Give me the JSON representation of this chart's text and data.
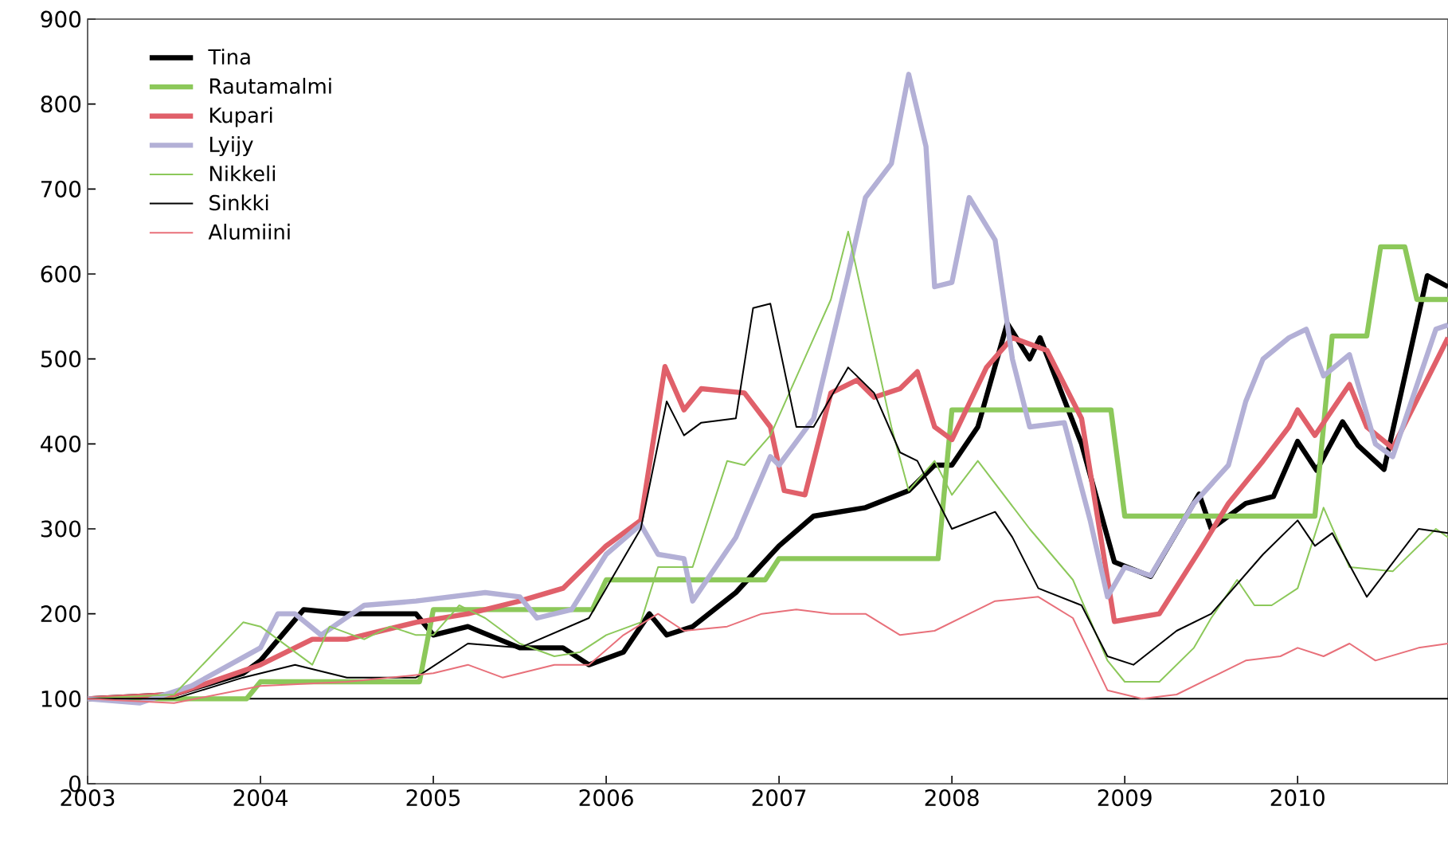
{
  "chart_data": {
    "type": "line",
    "xlim": [
      2003,
      2010.87
    ],
    "ylim": [
      0,
      900
    ],
    "xticks": [
      2003,
      2004,
      2005,
      2006,
      2007,
      2008,
      2009,
      2010
    ],
    "yticks": [
      0,
      100,
      200,
      300,
      400,
      500,
      600,
      700,
      800,
      900
    ],
    "grid": false,
    "legend": "top left",
    "marker": "none",
    "line_style": "solid",
    "ref_lines": [
      {
        "axis": "y",
        "value": 100,
        "color": "#000000"
      }
    ],
    "series": [
      {
        "name": "Tina",
        "color": "#000000",
        "x": [
          2003,
          2003.5,
          2003.9,
          2004.0,
          2004.25,
          2004.5,
          2004.9,
          2005.0,
          2005.2,
          2005.5,
          2005.75,
          2005.9,
          2006.1,
          2006.25,
          2006.35,
          2006.5,
          2006.75,
          2007.0,
          2007.2,
          2007.5,
          2007.75,
          2007.9,
          2008.0,
          2008.15,
          2008.32,
          2008.45,
          2008.51,
          2008.75,
          2008.94,
          2009.15,
          2009.43,
          2009.5,
          2009.7,
          2009.86,
          2010.0,
          2010.11,
          2010.26,
          2010.35,
          2010.5,
          2010.75,
          2010.87
        ],
        "values": [
          100,
          105,
          130,
          145,
          205,
          200,
          200,
          175,
          185,
          160,
          160,
          140,
          155,
          200,
          175,
          185,
          225,
          280,
          315,
          325,
          345,
          375,
          375,
          420,
          542,
          500,
          525,
          400,
          261,
          244,
          341,
          300,
          330,
          338,
          403,
          369,
          426,
          398,
          370,
          598,
          585
        ]
      },
      {
        "name": "Rautamalmi",
        "color": "#8cc85a",
        "x": [
          2003,
          2003.92,
          2004.0,
          2004.92,
          2005.0,
          2005.92,
          2006.0,
          2006.92,
          2007.0,
          2007.92,
          2008.0,
          2008.92,
          2009.0,
          2010.1,
          2010.2,
          2010.4,
          2010.48,
          2010.62,
          2010.69,
          2010.87
        ],
        "values": [
          100,
          100,
          120,
          120,
          205,
          205,
          240,
          240,
          265,
          265,
          440,
          440,
          315,
          315,
          527,
          527,
          632,
          632,
          570,
          570
        ]
      },
      {
        "name": "Kupari",
        "color": "#e0606a",
        "x": [
          2003,
          2003.5,
          2004.0,
          2004.3,
          2004.5,
          2004.9,
          2005.2,
          2005.5,
          2005.75,
          2006.0,
          2006.2,
          2006.34,
          2006.45,
          2006.55,
          2006.8,
          2006.95,
          2007.03,
          2007.15,
          2007.3,
          2007.45,
          2007.55,
          2007.7,
          2007.8,
          2007.9,
          2008.0,
          2008.2,
          2008.35,
          2008.55,
          2008.75,
          2008.94,
          2009.2,
          2009.45,
          2009.6,
          2009.8,
          2009.95,
          2010.0,
          2010.1,
          2010.3,
          2010.4,
          2010.55,
          2010.87
        ],
        "values": [
          100,
          105,
          140,
          170,
          170,
          190,
          200,
          215,
          230,
          280,
          310,
          491,
          440,
          465,
          460,
          420,
          345,
          340,
          460,
          475,
          455,
          465,
          485,
          420,
          405,
          490,
          525,
          510,
          430,
          191,
          200,
          280,
          330,
          380,
          420,
          440,
          410,
          470,
          420,
          395,
          525
        ]
      },
      {
        "name": "Lyijy",
        "color": "#b3b0d6",
        "x": [
          2003,
          2003.3,
          2003.6,
          2004.0,
          2004.1,
          2004.2,
          2004.35,
          2004.6,
          2004.9,
          2005.3,
          2005.5,
          2005.6,
          2005.8,
          2006.0,
          2006.2,
          2006.3,
          2006.45,
          2006.5,
          2006.75,
          2006.95,
          2007.0,
          2007.2,
          2007.4,
          2007.5,
          2007.65,
          2007.75,
          2007.85,
          2007.9,
          2008.0,
          2008.1,
          2008.25,
          2008.35,
          2008.45,
          2008.65,
          2008.8,
          2008.9,
          2009.0,
          2009.15,
          2009.4,
          2009.6,
          2009.7,
          2009.8,
          2009.95,
          2010.05,
          2010.15,
          2010.3,
          2010.45,
          2010.55,
          2010.8,
          2010.87
        ],
        "values": [
          100,
          95,
          115,
          160,
          200,
          200,
          175,
          210,
          215,
          225,
          220,
          195,
          205,
          270,
          305,
          270,
          265,
          215,
          290,
          385,
          375,
          430,
          600,
          690,
          730,
          835,
          750,
          585,
          590,
          690,
          640,
          500,
          420,
          425,
          310,
          220,
          255,
          245,
          330,
          375,
          450,
          500,
          525,
          535,
          480,
          505,
          400,
          385,
          535,
          540
        ]
      },
      {
        "name": "Nikkeli",
        "color": "#8cc85a",
        "x": [
          2003,
          2003.5,
          2003.9,
          2004.0,
          2004.3,
          2004.4,
          2004.6,
          2004.75,
          2004.9,
          2005.0,
          2005.15,
          2005.3,
          2005.5,
          2005.7,
          2005.85,
          2006.0,
          2006.2,
          2006.3,
          2006.5,
          2006.7,
          2006.8,
          2006.95,
          2007.3,
          2007.4,
          2007.65,
          2007.75,
          2007.9,
          2008.0,
          2008.15,
          2008.45,
          2008.7,
          2008.9,
          2009.0,
          2009.2,
          2009.4,
          2009.5,
          2009.65,
          2009.75,
          2009.85,
          2010.0,
          2010.15,
          2010.3,
          2010.55,
          2010.8,
          2010.87
        ],
        "values": [
          100,
          105,
          190,
          185,
          140,
          185,
          170,
          185,
          175,
          175,
          210,
          195,
          165,
          150,
          155,
          175,
          190,
          255,
          255,
          380,
          375,
          410,
          570,
          650,
          420,
          345,
          380,
          340,
          380,
          300,
          240,
          145,
          120,
          120,
          160,
          195,
          240,
          210,
          210,
          230,
          325,
          255,
          250,
          300,
          290
        ]
      },
      {
        "name": "Sinkki",
        "color": "#000000",
        "x": [
          2003,
          2003.5,
          2003.9,
          2004.2,
          2004.5,
          2004.9,
          2005.2,
          2005.5,
          2005.9,
          2006.1,
          2006.2,
          2006.35,
          2006.45,
          2006.55,
          2006.75,
          2006.85,
          2006.95,
          2007.1,
          2007.2,
          2007.4,
          2007.55,
          2007.7,
          2007.8,
          2008.0,
          2008.25,
          2008.35,
          2008.5,
          2008.75,
          2008.9,
          2009.05,
          2009.3,
          2009.5,
          2009.8,
          2010.0,
          2010.1,
          2010.2,
          2010.4,
          2010.7,
          2010.87
        ],
        "values": [
          100,
          100,
          125,
          140,
          125,
          125,
          165,
          160,
          195,
          265,
          300,
          450,
          410,
          425,
          430,
          560,
          565,
          420,
          420,
          490,
          460,
          390,
          380,
          300,
          320,
          290,
          230,
          210,
          150,
          140,
          180,
          200,
          270,
          310,
          280,
          295,
          220,
          300,
          295
        ]
      },
      {
        "name": "Alumiini",
        "color": "#e8707a",
        "x": [
          2003,
          2003.5,
          2004.0,
          2004.5,
          2005.0,
          2005.2,
          2005.4,
          2005.7,
          2005.9,
          2006.1,
          2006.3,
          2006.45,
          2006.7,
          2006.9,
          2007.1,
          2007.3,
          2007.5,
          2007.7,
          2007.9,
          2008.1,
          2008.25,
          2008.5,
          2008.7,
          2008.9,
          2009.1,
          2009.3,
          2009.5,
          2009.7,
          2009.9,
          2010.0,
          2010.15,
          2010.3,
          2010.45,
          2010.7,
          2010.87
        ],
        "values": [
          100,
          95,
          115,
          120,
          130,
          140,
          125,
          140,
          140,
          175,
          200,
          180,
          185,
          200,
          205,
          200,
          200,
          175,
          180,
          200,
          215,
          220,
          195,
          110,
          100,
          105,
          125,
          145,
          150,
          160,
          150,
          165,
          145,
          160,
          165
        ]
      }
    ]
  }
}
